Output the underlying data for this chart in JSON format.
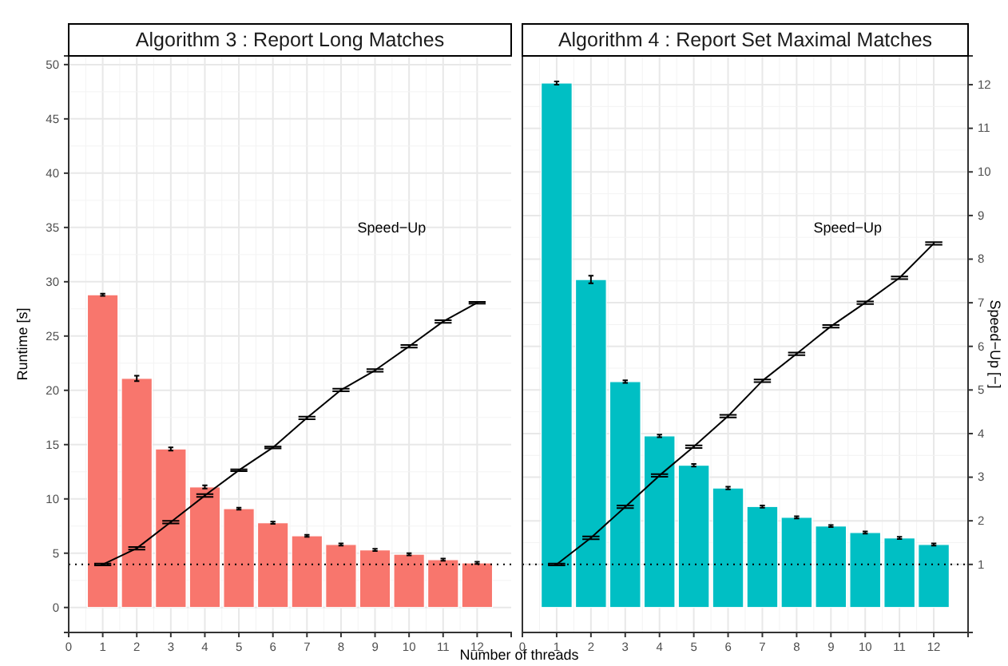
{
  "chart_data": [
    {
      "type": "bar",
      "title": "Algorithm 3 : Report Long Matches",
      "xlabel": "Number of threads",
      "ylabel": "Runtime [s]",
      "x": [
        1,
        2,
        3,
        4,
        5,
        6,
        7,
        8,
        9,
        10,
        11,
        12
      ],
      "xlim": [
        0,
        13
      ],
      "xticks": [
        0,
        1,
        2,
        3,
        4,
        5,
        6,
        7,
        8,
        9,
        10,
        11,
        12
      ],
      "ylim": [
        -2.3,
        50.8
      ],
      "yticks": [
        0,
        5,
        10,
        15,
        20,
        25,
        30,
        35,
        40,
        45,
        50
      ],
      "y2lim": [
        -0.56,
        12.66
      ],
      "grid": true,
      "series": [
        {
          "color": "#f8766d",
          "values": [
            28.8,
            21.1,
            14.6,
            11.1,
            9.1,
            7.8,
            6.6,
            5.8,
            5.3,
            4.9,
            4.4,
            4.1
          ],
          "errors": [
            0.1,
            0.25,
            0.15,
            0.15,
            0.1,
            0.1,
            0.1,
            0.1,
            0.1,
            0.1,
            0.1,
            0.1
          ]
        },
        {
          "type": "line",
          "axis": "y2",
          "color": "#000000",
          "values": [
            1.0,
            1.37,
            1.97,
            2.58,
            3.16,
            3.68,
            4.36,
            5.0,
            5.45,
            6.0,
            6.57,
            7.0
          ],
          "errors": [
            0.02,
            0.03,
            0.03,
            0.03,
            0.02,
            0.02,
            0.03,
            0.03,
            0.03,
            0.03,
            0.03,
            0.02
          ]
        }
      ],
      "ref_lines": [
        {
          "axis": "y2",
          "value": 1,
          "color": "#000000",
          "line_style": "dotted"
        }
      ],
      "annotations": [
        "Speed−Up"
      ]
    },
    {
      "type": "bar",
      "title": "Algorithm 4 : Report Set Maximal Matches",
      "y2label": "Speed−Up [−]",
      "x": [
        1,
        2,
        3,
        4,
        5,
        6,
        7,
        8,
        9,
        10,
        11,
        12
      ],
      "xlim": [
        0,
        13
      ],
      "xticks": [
        0,
        1,
        2,
        3,
        4,
        5,
        6,
        7,
        8,
        9,
        10,
        11,
        12
      ],
      "ylim": [
        -2.3,
        50.8
      ],
      "y2lim": [
        -0.56,
        12.66
      ],
      "y2ticks": [
        1,
        2,
        3,
        4,
        5,
        6,
        7,
        8,
        9,
        10,
        11,
        12
      ],
      "grid": true,
      "series": [
        {
          "color": "#00bfc4",
          "values": [
            48.3,
            30.2,
            20.8,
            15.8,
            13.1,
            11.0,
            9.3,
            8.3,
            7.5,
            6.9,
            6.4,
            5.8
          ],
          "errors": [
            0.15,
            0.35,
            0.12,
            0.12,
            0.12,
            0.12,
            0.1,
            0.1,
            0.1,
            0.1,
            0.1,
            0.1
          ]
        },
        {
          "type": "line",
          "axis": "y2",
          "color": "#000000",
          "values": [
            1.0,
            1.61,
            2.32,
            3.04,
            3.7,
            4.4,
            5.21,
            5.83,
            6.46,
            7.0,
            7.57,
            8.36
          ],
          "errors": [
            0.02,
            0.03,
            0.03,
            0.03,
            0.03,
            0.03,
            0.03,
            0.03,
            0.03,
            0.03,
            0.03,
            0.03
          ]
        }
      ],
      "ref_lines": [
        {
          "axis": "y2",
          "value": 1,
          "color": "#000000",
          "line_style": "dotted"
        }
      ],
      "annotations": [
        "Speed−Up"
      ]
    }
  ]
}
